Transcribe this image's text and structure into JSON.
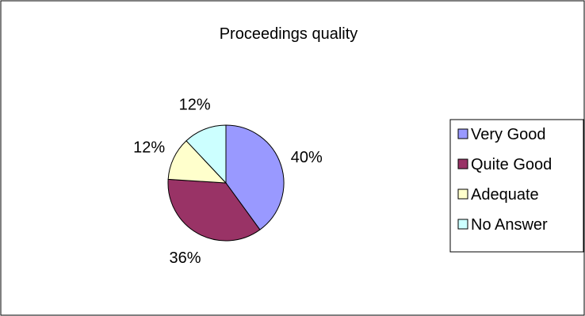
{
  "chart_data": {
    "type": "pie",
    "title": "Proceedings quality",
    "categories": [
      "Very Good",
      "Quite Good",
      "Adequate",
      "No Answer"
    ],
    "values": [
      40,
      36,
      12,
      12
    ],
    "data_labels": [
      "40%",
      "36%",
      "12%",
      "12%"
    ],
    "colors": [
      "#9999FF",
      "#993366",
      "#FFFFCC",
      "#CCFFFF"
    ],
    "legend_position": "right",
    "grid": false
  }
}
